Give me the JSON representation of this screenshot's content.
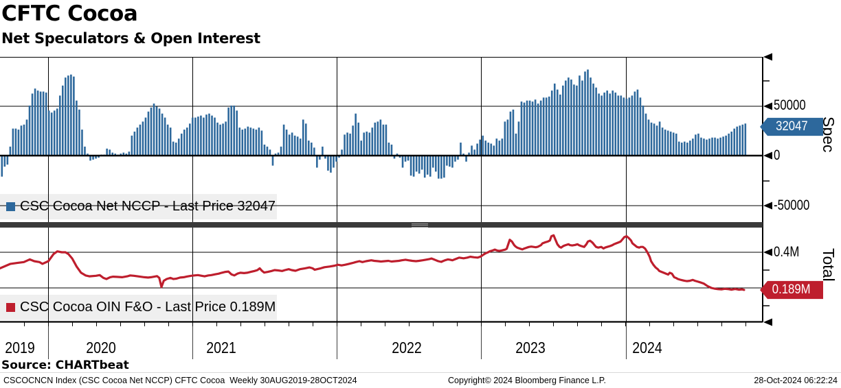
{
  "header": {
    "title": "CFTC Cocoa",
    "subtitle": "Net Speculators & Open Interest"
  },
  "source_line": "Source: CHARTbeat",
  "footer": {
    "left": "CSCOCNCN Index (CSC Cocoa Net NCCP) CFTC Cocoa  Weekly 30AUG2019-28OCT2024",
    "center": "Copyright© 2024 Bloomberg Finance L.P.",
    "right": "28-Oct-2024 06:22:24"
  },
  "colors": {
    "bar_blue": "#2d689c",
    "badge_blue": "#2d689c",
    "line_red": "#be1e2d",
    "badge_red": "#be1e2d",
    "legend_bg": "#efefef",
    "divider": "#3a3a3a",
    "grid": "#000000"
  },
  "panels": {
    "spec": {
      "legend": "CSC Cocoa Net NCCP - Last Price 32047",
      "axis_title": "Spec",
      "tick_labels": [
        "50000",
        "0",
        "-50000"
      ],
      "badge": "32047"
    },
    "total": {
      "legend": "CSC Cocoa OIN F&O - Last Price 0.189M",
      "axis_title": "Total",
      "tick_labels": [
        "0.4M"
      ],
      "badge": "0.189M"
    }
  },
  "xaxis": {
    "years": [
      "2019",
      "2020",
      "2021",
      "2022",
      "2023",
      "2024"
    ]
  },
  "chart_data": [
    {
      "type": "bar",
      "name": "CSC Cocoa Net NCCP",
      "panel": "Spec",
      "freq": "Weekly",
      "x_start": "30AUG2019",
      "x_end": "28OCT2024",
      "unit": "thousands of contracts (net speculator position)",
      "last_price": 32047,
      "y_ticks": [
        50000,
        0,
        -50000
      ],
      "ylim": [
        -66000,
        98500
      ],
      "values": [
        -21,
        -11,
        -9,
        9,
        27,
        27,
        26,
        30,
        31,
        36,
        50,
        62,
        67,
        65,
        64,
        64,
        63,
        45,
        43,
        45,
        47,
        60,
        70,
        78,
        80,
        81,
        79,
        55,
        46,
        26,
        9,
        2,
        -5,
        -4,
        -3,
        -2,
        1,
        1,
        7,
        6,
        3,
        2,
        1,
        2,
        3,
        2,
        4,
        20,
        24,
        28,
        31,
        34,
        38,
        44,
        48,
        52,
        49,
        47,
        42,
        38,
        31,
        28,
        14,
        13,
        17,
        22,
        26,
        28,
        32,
        38,
        38,
        39,
        40,
        38,
        41,
        42,
        40,
        38,
        33,
        31,
        32,
        34,
        48,
        50,
        50,
        45,
        28,
        26,
        27,
        29,
        28,
        27,
        26,
        28,
        25,
        11,
        9,
        6,
        -10,
        2,
        3,
        9,
        31,
        26,
        21,
        23,
        20,
        19,
        17,
        36,
        32,
        15,
        13,
        8,
        -12,
        -4,
        9,
        -3,
        -15,
        -17,
        -12,
        -6,
        -2,
        6,
        21,
        23,
        22,
        30,
        42,
        33,
        15,
        23,
        24,
        23,
        28,
        33,
        34,
        36,
        31,
        31,
        13,
        11,
        -3,
        2,
        -2,
        -12,
        -6,
        -5,
        -20,
        -21,
        -16,
        -18,
        -14,
        -22,
        -19,
        -21,
        -12,
        -16,
        -23,
        -23,
        -22,
        -10,
        -11,
        -12,
        -6,
        -4,
        13,
        2,
        -6,
        3,
        10,
        6,
        12,
        16,
        20,
        15,
        13,
        12,
        10,
        17,
        15,
        17,
        34,
        36,
        44,
        46,
        22,
        34,
        54,
        53,
        55,
        55,
        54,
        56,
        52,
        55,
        58,
        58,
        59,
        65,
        72,
        66,
        61,
        70,
        75,
        78,
        76,
        71,
        70,
        80,
        75,
        84,
        86,
        78,
        72,
        68,
        62,
        60,
        63,
        65,
        62,
        65,
        63,
        60,
        60,
        58,
        57,
        58,
        60,
        64,
        66,
        58,
        50,
        42,
        36,
        33,
        32,
        30,
        34,
        28,
        26,
        25,
        24,
        23,
        22,
        14,
        13,
        14,
        13,
        15,
        17,
        21,
        22,
        18,
        17,
        16,
        17,
        18,
        18,
        17,
        18,
        19,
        20,
        22,
        24,
        27,
        29,
        30,
        31,
        32.047
      ]
    },
    {
      "type": "line",
      "name": "CSC Cocoa OIN F&O",
      "panel": "Total",
      "freq": "Weekly",
      "x_start": "30AUG2019",
      "x_end": "28OCT2024",
      "unit": "million contracts (open interest, futures & options)",
      "last_price": "0.189M",
      "y_ticks": [
        "0.4M",
        "0.2M"
      ],
      "ylim": [
        0.0,
        0.54
      ],
      "points": [
        [
          0,
          0.31
        ],
        [
          0.014,
          0.335
        ],
        [
          0.023,
          0.34
        ],
        [
          0.032,
          0.345
        ],
        [
          0.04,
          0.36
        ],
        [
          0.046,
          0.35
        ],
        [
          0.053,
          0.345
        ],
        [
          0.057,
          0.335
        ],
        [
          0.065,
          0.35
        ],
        [
          0.072,
          0.39
        ],
        [
          0.077,
          0.405
        ],
        [
          0.083,
          0.4
        ],
        [
          0.088,
          0.4
        ],
        [
          0.092,
          0.39
        ],
        [
          0.097,
          0.365
        ],
        [
          0.103,
          0.32
        ],
        [
          0.109,
          0.285
        ],
        [
          0.115,
          0.27
        ],
        [
          0.12,
          0.265
        ],
        [
          0.129,
          0.268
        ],
        [
          0.134,
          0.272
        ],
        [
          0.139,
          0.256
        ],
        [
          0.143,
          0.25
        ],
        [
          0.148,
          0.26
        ],
        [
          0.152,
          0.263
        ],
        [
          0.157,
          0.262
        ],
        [
          0.164,
          0.26
        ],
        [
          0.171,
          0.265
        ],
        [
          0.175,
          0.27
        ],
        [
          0.18,
          0.268
        ],
        [
          0.185,
          0.265
        ],
        [
          0.194,
          0.26
        ],
        [
          0.199,
          0.258
        ],
        [
          0.203,
          0.26
        ],
        [
          0.211,
          0.266
        ],
        [
          0.214,
          0.256
        ],
        [
          0.217,
          0.205
        ],
        [
          0.22,
          0.24
        ],
        [
          0.224,
          0.25
        ],
        [
          0.229,
          0.256
        ],
        [
          0.233,
          0.25
        ],
        [
          0.237,
          0.252
        ],
        [
          0.242,
          0.258
        ],
        [
          0.247,
          0.26
        ],
        [
          0.251,
          0.264
        ],
        [
          0.257,
          0.268
        ],
        [
          0.261,
          0.27
        ],
        [
          0.266,
          0.272
        ],
        [
          0.271,
          0.268
        ],
        [
          0.275,
          0.265
        ],
        [
          0.28,
          0.27
        ],
        [
          0.284,
          0.272
        ],
        [
          0.289,
          0.276
        ],
        [
          0.294,
          0.28
        ],
        [
          0.298,
          0.285
        ],
        [
          0.303,
          0.29
        ],
        [
          0.307,
          0.292
        ],
        [
          0.311,
          0.276
        ],
        [
          0.315,
          0.27
        ],
        [
          0.319,
          0.28
        ],
        [
          0.323,
          0.285
        ],
        [
          0.328,
          0.283
        ],
        [
          0.332,
          0.285
        ],
        [
          0.337,
          0.29
        ],
        [
          0.342,
          0.295
        ],
        [
          0.346,
          0.3
        ],
        [
          0.349,
          0.31
        ],
        [
          0.352,
          0.296
        ],
        [
          0.355,
          0.286
        ],
        [
          0.36,
          0.29
        ],
        [
          0.365,
          0.295
        ],
        [
          0.369,
          0.3
        ],
        [
          0.374,
          0.298
        ],
        [
          0.379,
          0.295
        ],
        [
          0.383,
          0.3
        ],
        [
          0.388,
          0.305
        ],
        [
          0.392,
          0.3
        ],
        [
          0.397,
          0.296
        ],
        [
          0.403,
          0.305
        ],
        [
          0.41,
          0.31
        ],
        [
          0.416,
          0.315
        ],
        [
          0.42,
          0.31
        ],
        [
          0.423,
          0.302
        ],
        [
          0.427,
          0.306
        ],
        [
          0.431,
          0.31
        ],
        [
          0.436,
          0.316
        ],
        [
          0.443,
          0.32
        ],
        [
          0.45,
          0.325
        ],
        [
          0.454,
          0.33
        ],
        [
          0.459,
          0.326
        ],
        [
          0.464,
          0.33
        ],
        [
          0.469,
          0.335
        ],
        [
          0.474,
          0.34
        ],
        [
          0.478,
          0.345
        ],
        [
          0.483,
          0.35
        ],
        [
          0.487,
          0.345
        ],
        [
          0.492,
          0.35
        ],
        [
          0.499,
          0.355
        ],
        [
          0.503,
          0.352
        ],
        [
          0.508,
          0.35
        ],
        [
          0.512,
          0.348
        ],
        [
          0.517,
          0.35
        ],
        [
          0.522,
          0.352
        ],
        [
          0.526,
          0.348
        ],
        [
          0.531,
          0.35
        ],
        [
          0.536,
          0.352
        ],
        [
          0.54,
          0.355
        ],
        [
          0.545,
          0.358
        ],
        [
          0.549,
          0.355
        ],
        [
          0.554,
          0.352
        ],
        [
          0.559,
          0.35
        ],
        [
          0.563,
          0.352
        ],
        [
          0.568,
          0.355
        ],
        [
          0.572,
          0.358
        ],
        [
          0.577,
          0.362
        ],
        [
          0.58,
          0.365
        ],
        [
          0.583,
          0.36
        ],
        [
          0.586,
          0.355
        ],
        [
          0.589,
          0.35
        ],
        [
          0.593,
          0.346
        ],
        [
          0.595,
          0.35
        ],
        [
          0.598,
          0.355
        ],
        [
          0.602,
          0.36
        ],
        [
          0.605,
          0.358
        ],
        [
          0.608,
          0.355
        ],
        [
          0.611,
          0.36
        ],
        [
          0.614,
          0.365
        ],
        [
          0.617,
          0.37
        ],
        [
          0.62,
          0.368
        ],
        [
          0.623,
          0.366
        ],
        [
          0.628,
          0.37
        ],
        [
          0.632,
          0.375
        ],
        [
          0.637,
          0.372
        ],
        [
          0.642,
          0.37
        ],
        [
          0.646,
          0.376
        ],
        [
          0.649,
          0.385
        ],
        [
          0.653,
          0.395
        ],
        [
          0.656,
          0.4
        ],
        [
          0.658,
          0.405
        ],
        [
          0.662,
          0.41
        ],
        [
          0.665,
          0.415
        ],
        [
          0.668,
          0.41
        ],
        [
          0.671,
          0.408
        ],
        [
          0.674,
          0.41
        ],
        [
          0.679,
          0.415
        ],
        [
          0.681,
          0.42
        ],
        [
          0.685,
          0.47
        ],
        [
          0.688,
          0.46
        ],
        [
          0.691,
          0.44
        ],
        [
          0.693,
          0.432
        ],
        [
          0.695,
          0.426
        ],
        [
          0.699,
          0.42
        ],
        [
          0.702,
          0.416
        ],
        [
          0.704,
          0.42
        ],
        [
          0.708,
          0.426
        ],
        [
          0.711,
          0.43
        ],
        [
          0.714,
          0.432
        ],
        [
          0.717,
          0.43
        ],
        [
          0.72,
          0.428
        ],
        [
          0.723,
          0.431
        ],
        [
          0.727,
          0.44
        ],
        [
          0.729,
          0.45
        ],
        [
          0.732,
          0.455
        ],
        [
          0.736,
          0.46
        ],
        [
          0.739,
          0.466
        ],
        [
          0.741,
          0.49
        ],
        [
          0.744,
          0.495
        ],
        [
          0.746,
          0.475
        ],
        [
          0.749,
          0.445
        ],
        [
          0.752,
          0.43
        ],
        [
          0.754,
          0.426
        ],
        [
          0.757,
          0.435
        ],
        [
          0.76,
          0.44
        ],
        [
          0.764,
          0.445
        ],
        [
          0.766,
          0.44
        ],
        [
          0.769,
          0.438
        ],
        [
          0.773,
          0.441
        ],
        [
          0.776,
          0.445
        ],
        [
          0.778,
          0.44
        ],
        [
          0.781,
          0.435
        ],
        [
          0.785,
          0.43
        ],
        [
          0.788,
          0.445
        ],
        [
          0.79,
          0.46
        ],
        [
          0.793,
          0.465
        ],
        [
          0.796,
          0.455
        ],
        [
          0.799,
          0.44
        ],
        [
          0.801,
          0.43
        ],
        [
          0.804,
          0.426
        ],
        [
          0.808,
          0.43
        ],
        [
          0.811,
          0.421
        ],
        [
          0.813,
          0.426
        ],
        [
          0.816,
          0.43
        ],
        [
          0.82,
          0.435
        ],
        [
          0.823,
          0.44
        ],
        [
          0.825,
          0.445
        ],
        [
          0.828,
          0.45
        ],
        [
          0.831,
          0.455
        ],
        [
          0.834,
          0.46
        ],
        [
          0.837,
          0.475
        ],
        [
          0.839,
          0.485
        ],
        [
          0.842,
          0.49
        ],
        [
          0.845,
          0.48
        ],
        [
          0.848,
          0.466
        ],
        [
          0.85,
          0.45
        ],
        [
          0.853,
          0.44
        ],
        [
          0.856,
          0.43
        ],
        [
          0.859,
          0.426
        ],
        [
          0.861,
          0.43
        ],
        [
          0.864,
          0.43
        ],
        [
          0.867,
          0.42
        ],
        [
          0.87,
          0.4
        ],
        [
          0.873,
          0.375
        ],
        [
          0.875,
          0.35
        ],
        [
          0.878,
          0.33
        ],
        [
          0.881,
          0.315
        ],
        [
          0.884,
          0.305
        ],
        [
          0.886,
          0.295
        ],
        [
          0.889,
          0.29
        ],
        [
          0.892,
          0.285
        ],
        [
          0.895,
          0.28
        ],
        [
          0.898,
          0.275
        ],
        [
          0.9,
          0.285
        ],
        [
          0.903,
          0.28
        ],
        [
          0.906,
          0.26
        ],
        [
          0.909,
          0.255
        ],
        [
          0.911,
          0.25
        ],
        [
          0.914,
          0.246
        ],
        [
          0.917,
          0.243
        ],
        [
          0.92,
          0.24
        ],
        [
          0.923,
          0.238
        ],
        [
          0.927,
          0.24
        ],
        [
          0.931,
          0.245
        ],
        [
          0.934,
          0.24
        ],
        [
          0.938,
          0.235
        ],
        [
          0.942,
          0.23
        ],
        [
          0.946,
          0.224
        ],
        [
          0.951,
          0.21
        ],
        [
          0.956,
          0.2
        ],
        [
          0.96,
          0.196
        ],
        [
          0.965,
          0.193
        ],
        [
          0.97,
          0.192
        ],
        [
          0.974,
          0.195
        ],
        [
          0.979,
          0.193
        ],
        [
          0.983,
          0.19
        ],
        [
          0.988,
          0.194
        ],
        [
          0.993,
          0.19
        ],
        [
          0.997,
          0.192
        ],
        [
          1,
          0.189
        ]
      ]
    }
  ]
}
